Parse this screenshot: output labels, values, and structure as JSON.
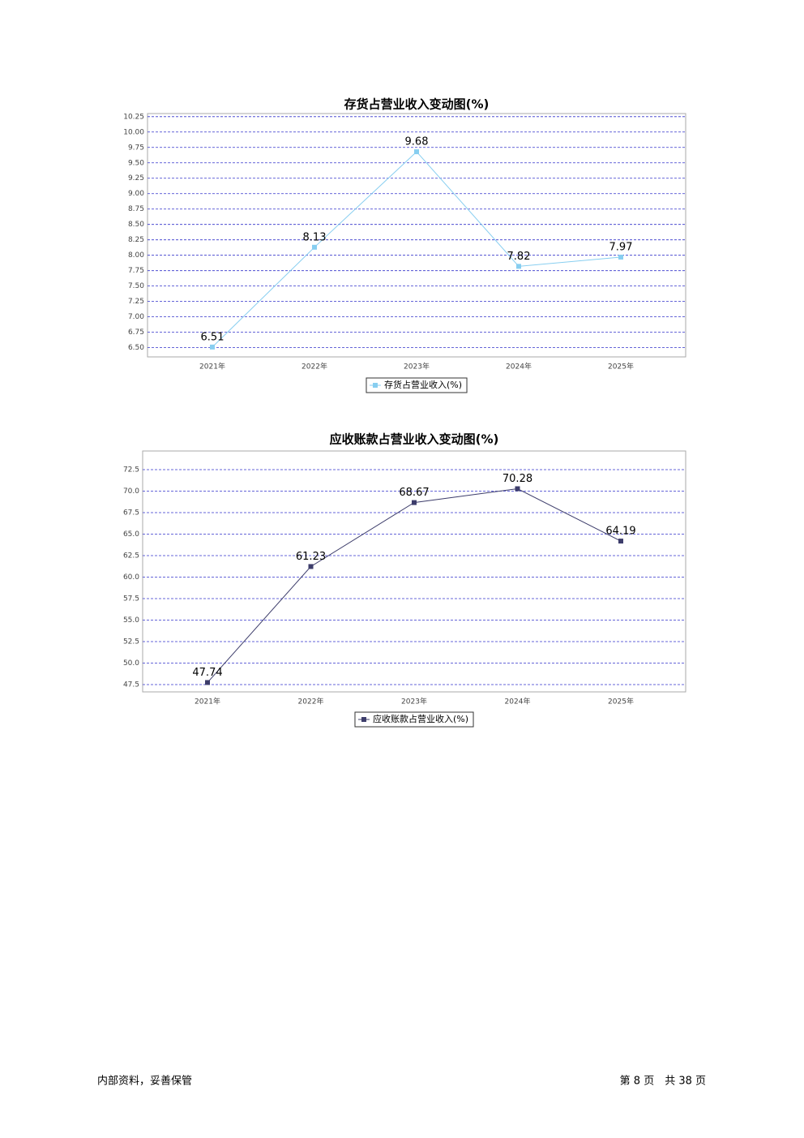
{
  "chart_data": [
    {
      "type": "line",
      "title": "存货占营业收入变动图(%)",
      "categories": [
        "2021年",
        "2022年",
        "2023年",
        "2024年",
        "2025年"
      ],
      "series": [
        {
          "name": "存货占营业收入(%)",
          "color": "#87cef0",
          "values": [
            6.51,
            8.13,
            9.68,
            7.82,
            7.97
          ]
        }
      ],
      "ylim": [
        6.35,
        10.3
      ],
      "yticks": [
        {
          "value": 6.5,
          "label": "6.50"
        },
        {
          "value": 6.75,
          "label": "6.75"
        },
        {
          "value": 7,
          "label": "7.00"
        },
        {
          "value": 7.25,
          "label": "7.25"
        },
        {
          "value": 7.5,
          "label": "7.50"
        },
        {
          "value": 7.75,
          "label": "7.75"
        },
        {
          "value": 8,
          "label": "8.00"
        },
        {
          "value": 8.25,
          "label": "8.25"
        },
        {
          "value": 8.5,
          "label": "8.50"
        },
        {
          "value": 8.75,
          "label": "8.75"
        },
        {
          "value": 9,
          "label": "9.00"
        },
        {
          "value": 9.25,
          "label": "9.25"
        },
        {
          "value": 9.5,
          "label": "9.50"
        },
        {
          "value": 9.75,
          "label": "9.75"
        },
        {
          "value": 10,
          "label": "10.00"
        },
        {
          "value": 10.25,
          "label": "10.25"
        }
      ],
      "grid": true
    },
    {
      "type": "line",
      "title": "应收账款占营业收入变动图(%)",
      "categories": [
        "2021年",
        "2022年",
        "2023年",
        "2024年",
        "2025年"
      ],
      "series": [
        {
          "name": "应收账款占营业收入(%)",
          "color": "#3d3d6b",
          "values": [
            47.74,
            61.23,
            68.67,
            70.28,
            64.19
          ]
        }
      ],
      "ylim": [
        46.65,
        74.67
      ],
      "yticks": [
        47.5,
        {
          "value": 50,
          "label": "50.0"
        },
        52.5,
        {
          "value": 55,
          "label": "55.0"
        },
        57.5,
        {
          "value": 60,
          "label": "60.0"
        },
        62.5,
        {
          "value": 65,
          "label": "65.0"
        },
        67.5,
        {
          "value": 70,
          "label": "70.0"
        },
        72.5
      ],
      "grid": true
    }
  ],
  "footer": {
    "left": "内部资料，妥善保管",
    "right": "第 8 页　共 38 页"
  }
}
